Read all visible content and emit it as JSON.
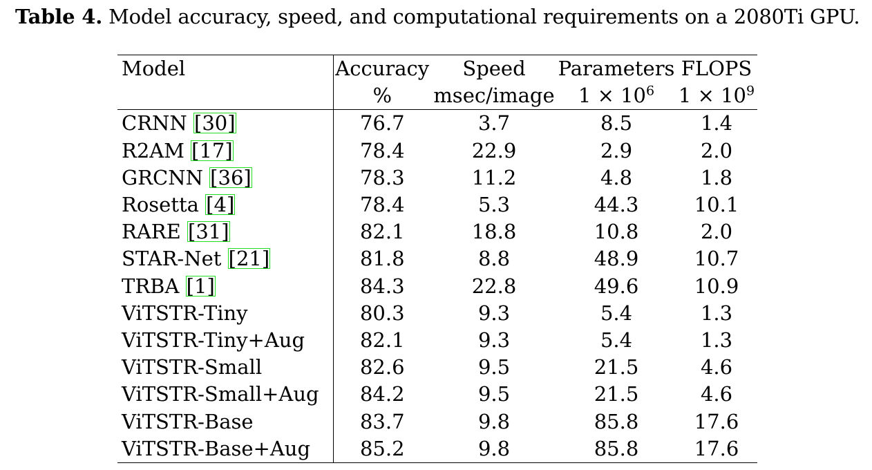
{
  "caption": {
    "label": "Table 4.",
    "text": "Model accuracy, speed, and computational requirements on a 2080Ti GPU."
  },
  "table": {
    "header_row1": [
      "Model",
      "Accuracy",
      "Speed",
      "Parameters",
      "FLOPS"
    ],
    "header_row2": {
      "accuracy_unit": "%",
      "speed_unit": "msec/image",
      "params_unit_base": "1 × 10",
      "params_unit_exp": "6",
      "flops_unit_base": "1 × 10",
      "flops_unit_exp": "9"
    },
    "rows": [
      {
        "model": "CRNN",
        "cite": "30",
        "accuracy": "76.7",
        "speed": "3.7",
        "params": "8.5",
        "flops": "1.4"
      },
      {
        "model": "R2AM",
        "cite": "17",
        "accuracy": "78.4",
        "speed": "22.9",
        "params": "2.9",
        "flops": "2.0"
      },
      {
        "model": "GRCNN",
        "cite": "36",
        "accuracy": "78.3",
        "speed": "11.2",
        "params": "4.8",
        "flops": "1.8"
      },
      {
        "model": "Rosetta",
        "cite": "4",
        "accuracy": "78.4",
        "speed": "5.3",
        "params": "44.3",
        "flops": "10.1"
      },
      {
        "model": "RARE",
        "cite": "31",
        "accuracy": "82.1",
        "speed": "18.8",
        "params": "10.8",
        "flops": "2.0"
      },
      {
        "model": "STAR-Net",
        "cite": "21",
        "accuracy": "81.8",
        "speed": "8.8",
        "params": "48.9",
        "flops": "10.7"
      },
      {
        "model": "TRBA",
        "cite": "1",
        "accuracy": "84.3",
        "speed": "22.8",
        "params": "49.6",
        "flops": "10.9"
      },
      {
        "model": "ViTSTR-Tiny",
        "cite": "",
        "accuracy": "80.3",
        "speed": "9.3",
        "params": "5.4",
        "flops": "1.3"
      },
      {
        "model": "ViTSTR-Tiny+Aug",
        "cite": "",
        "accuracy": "82.1",
        "speed": "9.3",
        "params": "5.4",
        "flops": "1.3"
      },
      {
        "model": "ViTSTR-Small",
        "cite": "",
        "accuracy": "82.6",
        "speed": "9.5",
        "params": "21.5",
        "flops": "4.6"
      },
      {
        "model": "ViTSTR-Small+Aug",
        "cite": "",
        "accuracy": "84.2",
        "speed": "9.5",
        "params": "21.5",
        "flops": "4.6"
      },
      {
        "model": "ViTSTR-Base",
        "cite": "",
        "accuracy": "83.7",
        "speed": "9.8",
        "params": "85.8",
        "flops": "17.6"
      },
      {
        "model": "ViTSTR-Base+Aug",
        "cite": "",
        "accuracy": "85.2",
        "speed": "9.8",
        "params": "85.8",
        "flops": "17.6"
      }
    ]
  },
  "colors": {
    "citation_box": "#22dd22"
  }
}
